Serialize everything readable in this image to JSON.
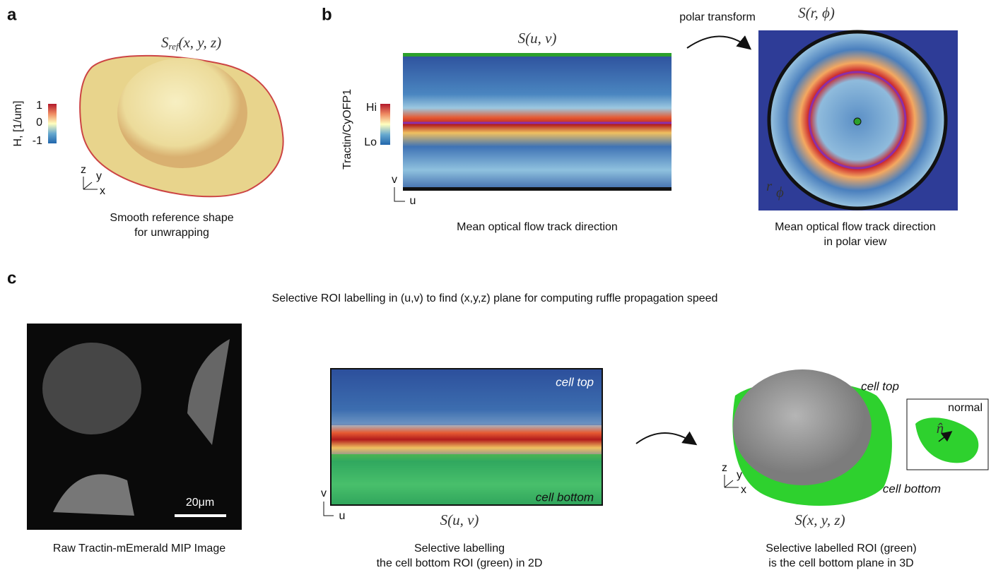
{
  "panel_a": {
    "label": "a",
    "surface_title": {
      "base": "S",
      "sub": "ref",
      "args": "(x, y, z)"
    },
    "colorbar_label": "H, [1/um]",
    "colorbar_ticks": [
      "1",
      "0",
      "-1"
    ],
    "axes": [
      "z",
      "y",
      "x"
    ],
    "caption": [
      "Smooth reference shape",
      "for unwrapping"
    ]
  },
  "panel_b": {
    "label": "b",
    "map_title": "S(u, v)",
    "colorbar_label": "Tractin/CyOFP1",
    "colorbar_ticks": [
      "Hi",
      "Lo"
    ],
    "axes": [
      "v",
      "u"
    ],
    "caption": [
      "Mean optical flow track direction"
    ],
    "arrow_label": "polar transform",
    "polar_title": "S(r, ϕ)",
    "polar_axes": [
      "r",
      "ϕ"
    ],
    "polar_caption": [
      "Mean optical flow track direction",
      "in polar view"
    ]
  },
  "panel_c": {
    "label": "c",
    "title": "Selective ROI labelling in (u,v) to find (x,y,z) plane for computing ruffle propagation speed",
    "scale_bar": "20μm",
    "image_caption": [
      "Raw Tractin-mEmerald MIP Image"
    ],
    "map_labels": [
      "cell top",
      "cell bottom"
    ],
    "map_axes": [
      "v",
      "u"
    ],
    "map_title": "S(u, v)",
    "map_caption": [
      "Selective labelling",
      "the cell bottom ROI (green) in 2D"
    ],
    "shape_labels": [
      "cell top",
      "cell bottom"
    ],
    "inset_label": "normal",
    "inset_vector": "n̂",
    "shape_axes": [
      "z",
      "y",
      "x"
    ],
    "shape_title": "S(x, y, z)",
    "shape_caption": [
      "Selective labelled ROI (green)",
      "is the cell bottom plane in 3D"
    ]
  }
}
